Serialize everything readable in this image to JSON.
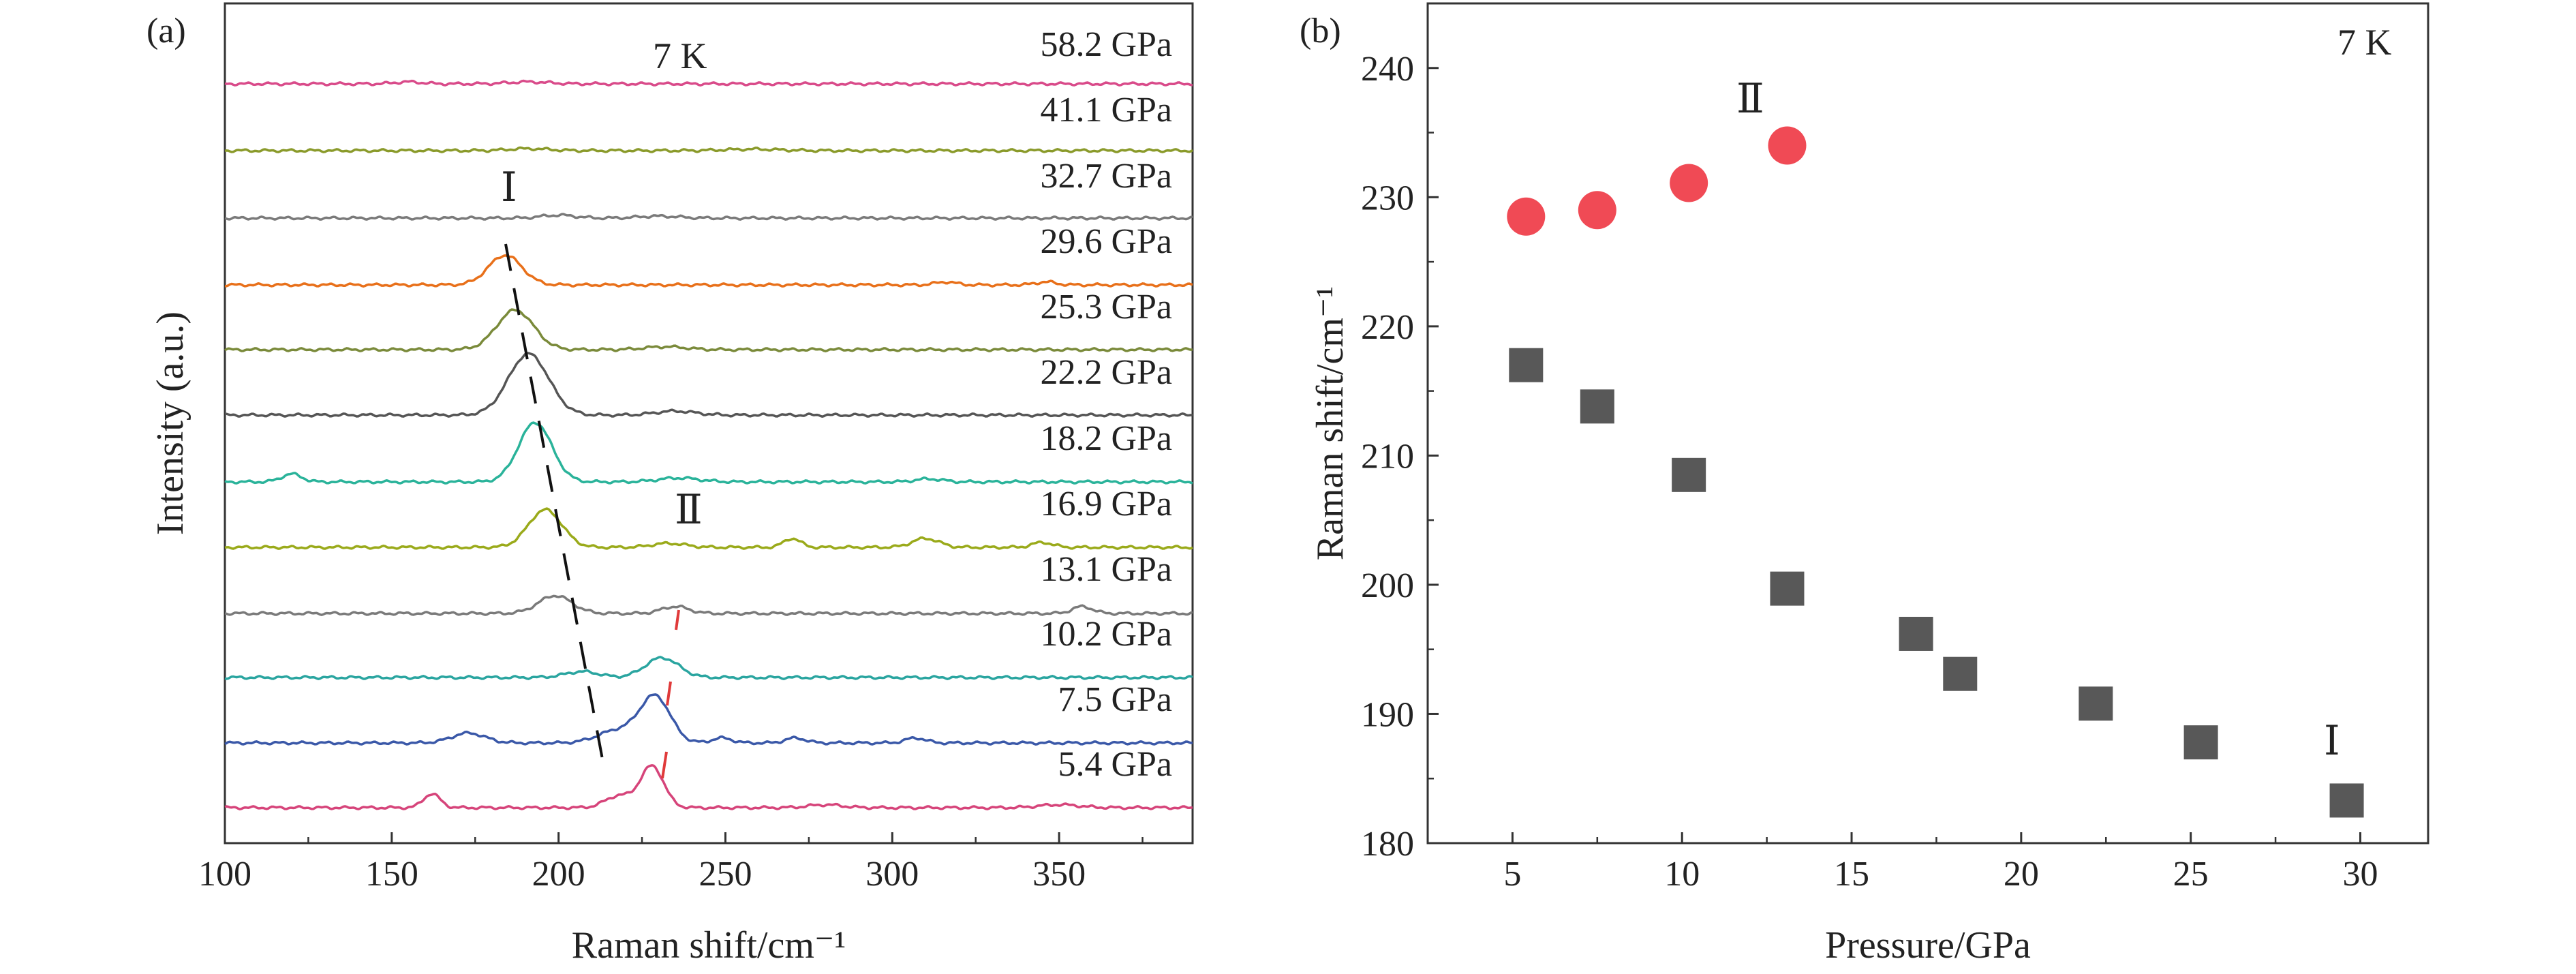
{
  "colors": {
    "axis": "#333333",
    "mode_II_red": "#e03a3a",
    "point_I": "#585858",
    "point_II": "#f04a55"
  },
  "chart_data": [
    {
      "panel": "(a)",
      "type": "line",
      "xlabel": "Raman shift/cm⁻¹",
      "ylabel": "Intensity (a.u.)",
      "xlim": [
        100,
        390
      ],
      "xticks": [
        100,
        150,
        200,
        250,
        300,
        350
      ],
      "temperature_label": "7 K",
      "peak_labels": {
        "mode_I": "Ⅰ",
        "mode_II": "Ⅱ"
      },
      "series": [
        {
          "pressure": 58.2,
          "label": "58.2 GPa",
          "color": "#d94b8a",
          "peaks": [
            [
              155,
              2,
              4
            ],
            [
              191,
              2,
              6
            ]
          ]
        },
        {
          "pressure": 41.1,
          "label": "41.1 GPa",
          "color": "#8a9a2a",
          "peaks": [
            [
              191,
              2,
              6
            ],
            [
              258,
              1.5,
              8
            ]
          ]
        },
        {
          "pressure": 32.7,
          "label": "32.7 GPa",
          "color": "#7a7a7a",
          "peaks": [
            [
              200,
              3,
              5
            ],
            [
              230,
              2,
              6
            ]
          ]
        },
        {
          "pressure": 29.6,
          "label": "29.6 GPa",
          "color": "#e8701a",
          "peaks": [
            [
              184,
              30,
              5
            ],
            [
              316,
              3,
              3
            ],
            [
              346,
              3,
              3
            ]
          ]
        },
        {
          "pressure": 25.3,
          "label": "25.3 GPa",
          "color": "#7a8a3a",
          "peaks": [
            [
              187,
              40,
              5.5
            ],
            [
              232,
              3,
              6
            ]
          ]
        },
        {
          "pressure": 22.2,
          "label": "22.2 GPa",
          "color": "#555555",
          "peaks": [
            [
              191,
              62,
              6
            ],
            [
              235,
              4,
              6
            ]
          ]
        },
        {
          "pressure": 18.2,
          "label": "18.2 GPa",
          "color": "#2ab39a",
          "peaks": [
            [
              120,
              8,
              3
            ],
            [
              193,
              60,
              5
            ],
            [
              236,
              4,
              6
            ],
            [
              311,
              3,
              4
            ]
          ]
        },
        {
          "pressure": 16.9,
          "label": "16.9 GPa",
          "color": "#9aaa1a",
          "peaks": [
            [
              196,
              38,
              5
            ],
            [
              233,
              4,
              5
            ],
            [
              270,
              9,
              2.5
            ],
            [
              310,
              9,
              4
            ],
            [
              345,
              5,
              3
            ]
          ]
        },
        {
          "pressure": 13.1,
          "label": "13.1 GPa",
          "color": "#7a7a7a",
          "peaks": [
            [
              199,
              18,
              5
            ],
            [
              235,
              7,
              4
            ],
            [
              357,
              7,
              3
            ]
          ]
        },
        {
          "pressure": 10.2,
          "label": "10.2 GPa",
          "color": "#2aa5a0",
          "peaks": [
            [
              207,
              6,
              5
            ],
            [
              231,
              20,
              5
            ]
          ]
        },
        {
          "pressure": 7.5,
          "label": "7.5 GPa",
          "color": "#3a58a8",
          "peaks": [
            [
              173,
              10,
              5
            ],
            [
              218,
              13,
              6
            ],
            [
              229,
              46,
              4.5
            ],
            [
              249,
              5,
              3
            ],
            [
              271,
              5,
              3
            ],
            [
              307,
              5,
              3
            ]
          ]
        },
        {
          "pressure": 5.4,
          "label": "5.4 GPa",
          "color": "#d6447a",
          "peaks": [
            [
              162,
              14,
              2.5
            ],
            [
              218,
              12,
              4
            ],
            [
              228,
              42,
              3.5
            ],
            [
              280,
              3,
              5
            ],
            [
              350,
              3,
              6
            ]
          ]
        }
      ]
    },
    {
      "panel": "(b)",
      "type": "scatter",
      "xlabel": "Pressure/GPa",
      "ylabel": "Raman shift/cm⁻¹",
      "xlim": [
        2.5,
        32
      ],
      "ylim": [
        180,
        245
      ],
      "xticks": [
        5,
        10,
        15,
        20,
        25,
        30
      ],
      "yticks": [
        180,
        190,
        200,
        210,
        220,
        230,
        240
      ],
      "temperature_label": "7 K",
      "series": [
        {
          "label": "Ⅰ",
          "marker": "square",
          "x": [
            5.4,
            7.5,
            10.2,
            13.1,
            16.9,
            18.2,
            22.2,
            25.3,
            29.6
          ],
          "y": [
            217.0,
            213.8,
            208.5,
            199.7,
            196.2,
            193.1,
            190.8,
            187.8,
            183.3
          ]
        },
        {
          "label": "Ⅱ",
          "marker": "circle",
          "x": [
            5.4,
            7.5,
            10.2,
            13.1
          ],
          "y": [
            228.5,
            229.0,
            231.1,
            234.0
          ]
        }
      ]
    }
  ]
}
